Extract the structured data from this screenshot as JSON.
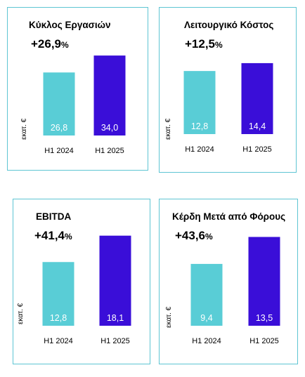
{
  "colors": {
    "h1_2024": "#59cdd6",
    "h1_2025": "#3a0ed8",
    "border": "#5ec5d3",
    "bar_label": "#ffffff"
  },
  "chart_data": [
    {
      "type": "bar",
      "title": "Κύκλος Εργασιών",
      "change": "+26,9%",
      "ylabel": "εκατ. €",
      "categories": [
        "H1 2024",
        "H1 2025"
      ],
      "values": [
        26.8,
        34.0
      ],
      "value_labels": [
        "26,8",
        "34,0"
      ]
    },
    {
      "type": "bar",
      "title": "Λειτουργικό Κόστος",
      "change": "+12,5%",
      "ylabel": "εκατ. €",
      "categories": [
        "H1 2024",
        "H1 2025"
      ],
      "values": [
        12.8,
        14.4
      ],
      "value_labels": [
        "12,8",
        "14,4"
      ]
    },
    {
      "type": "bar",
      "title": "EBITDA",
      "change": "+41,4%",
      "ylabel": "εκατ. €",
      "categories": [
        "H1 2024",
        "H1 2025"
      ],
      "values": [
        12.8,
        18.1
      ],
      "value_labels": [
        "12,8",
        "18,1"
      ]
    },
    {
      "type": "bar",
      "title": "Κέρδη Μετά από Φόρους",
      "change": "+43,6%",
      "ylabel": "εκατ. €",
      "categories": [
        "H1 2024",
        "H1 2025"
      ],
      "values": [
        9.4,
        13.5
      ],
      "value_labels": [
        "9,4",
        "13,5"
      ]
    }
  ]
}
